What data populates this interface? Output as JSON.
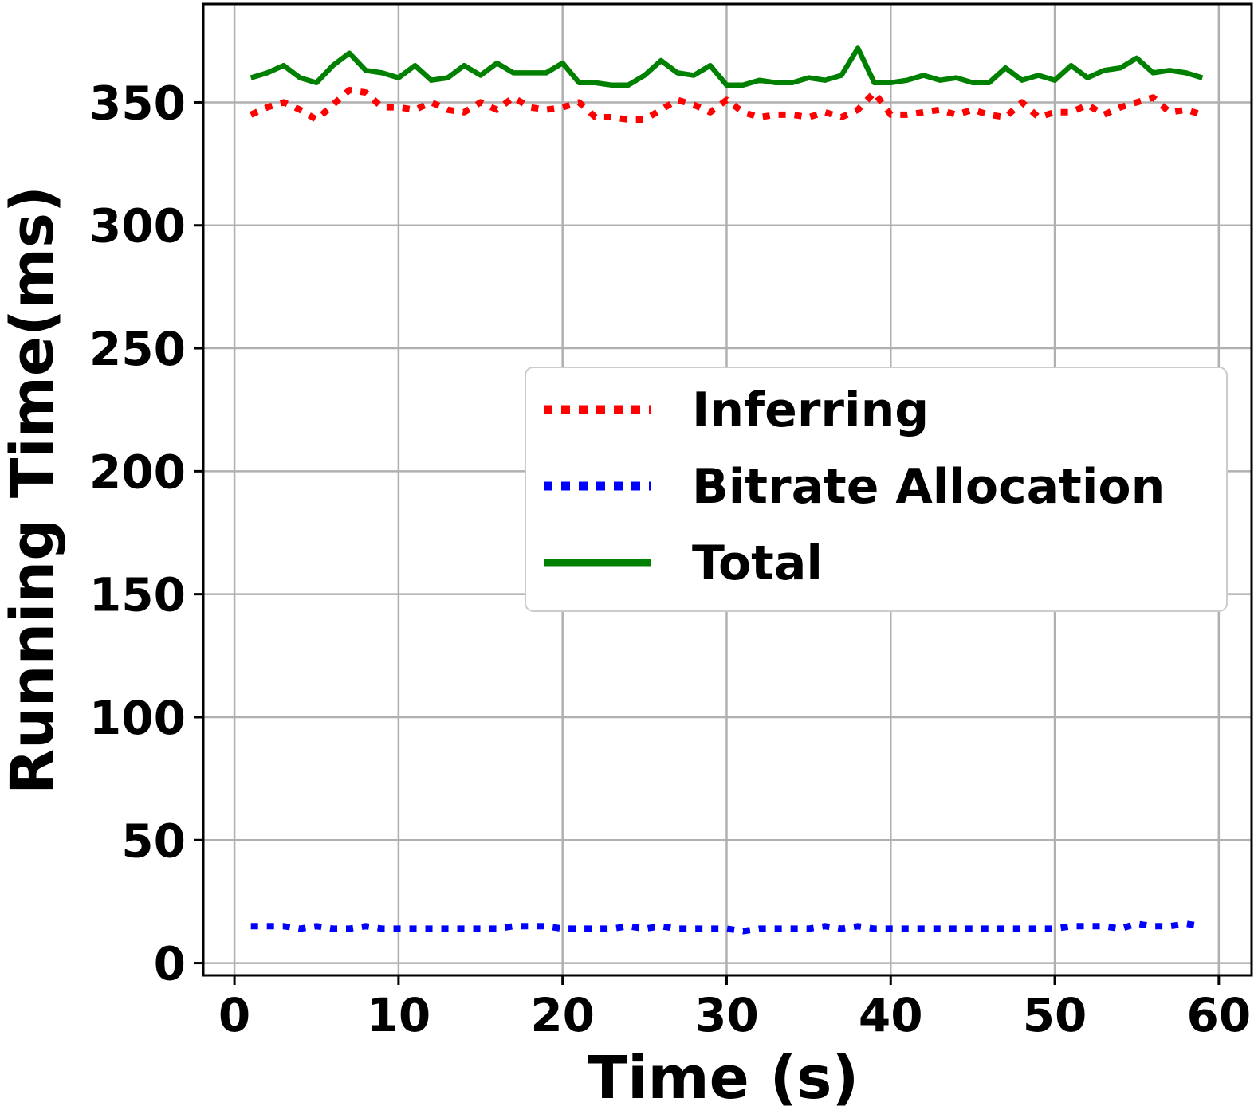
{
  "chart_data": {
    "type": "line",
    "title": "",
    "xlabel": "Time (s)",
    "ylabel": "Running Time(ms)",
    "xlim": [
      -1.9,
      62
    ],
    "ylim": [
      -5,
      390
    ],
    "xticks": [
      0,
      10,
      20,
      30,
      40,
      50,
      60
    ],
    "yticks": [
      0,
      50,
      100,
      150,
      200,
      250,
      300,
      350
    ],
    "grid": true,
    "legend_position": "center-right",
    "x": [
      1,
      2,
      3,
      4,
      5,
      6,
      7,
      8,
      9,
      10,
      11,
      12,
      13,
      14,
      15,
      16,
      17,
      18,
      19,
      20,
      21,
      22,
      23,
      24,
      25,
      26,
      27,
      28,
      29,
      30,
      31,
      32,
      33,
      34,
      35,
      36,
      37,
      38,
      39,
      40,
      41,
      42,
      43,
      44,
      45,
      46,
      47,
      48,
      49,
      50,
      51,
      52,
      53,
      54,
      55,
      56,
      57,
      58,
      59
    ],
    "series": [
      {
        "name": "Inferring",
        "color": "#ff0000",
        "style": "dotted",
        "values": [
          345,
          348,
          350,
          347,
          343,
          349,
          355,
          354,
          348,
          348,
          347,
          350,
          347,
          346,
          350,
          347,
          352,
          348,
          347,
          348,
          350,
          344,
          344,
          343,
          343,
          347,
          351,
          349,
          346,
          351,
          346,
          344,
          345,
          345,
          344,
          346,
          344,
          347,
          354,
          345,
          345,
          346,
          347,
          345,
          347,
          345,
          344,
          350,
          344,
          346,
          346,
          349,
          345,
          348,
          350,
          352,
          346,
          347,
          345
        ]
      },
      {
        "name": "Bitrate Allocation",
        "color": "#0000ff",
        "style": "dotted",
        "values": [
          15,
          15,
          15,
          14,
          15,
          14,
          14,
          15,
          14,
          14,
          14,
          14,
          14,
          14,
          14,
          14,
          15,
          15,
          15,
          14,
          14,
          14,
          14,
          15,
          14,
          15,
          14,
          14,
          14,
          14,
          13,
          14,
          14,
          14,
          14,
          15,
          14,
          15,
          14,
          14,
          14,
          14,
          14,
          14,
          14,
          14,
          14,
          14,
          14,
          14,
          15,
          15,
          15,
          14,
          16,
          15,
          15,
          16,
          15
        ]
      },
      {
        "name": "Total",
        "color": "#008000",
        "style": "solid",
        "values": [
          360,
          362,
          365,
          360,
          358,
          365,
          370,
          363,
          362,
          360,
          365,
          359,
          360,
          365,
          361,
          366,
          362,
          362,
          362,
          366,
          358,
          358,
          357,
          357,
          361,
          367,
          362,
          361,
          365,
          357,
          357,
          359,
          358,
          358,
          360,
          359,
          361,
          372,
          358,
          358,
          359,
          361,
          359,
          360,
          358,
          358,
          364,
          359,
          361,
          359,
          365,
          360,
          363,
          364,
          368,
          362,
          363,
          362,
          360
        ]
      }
    ]
  }
}
